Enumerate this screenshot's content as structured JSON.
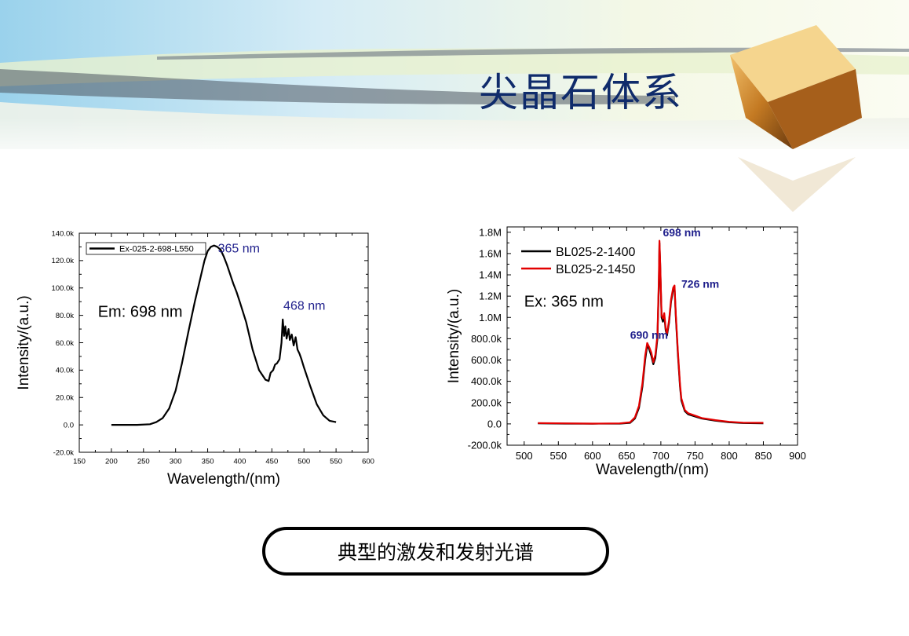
{
  "slide": {
    "title": "尖晶石体系",
    "caption": "典型的激发和发射光谱"
  },
  "chart_data": [
    {
      "type": "line",
      "xlabel": "Wavelength/(nm)",
      "ylabel": "Intensity/(a.u.)",
      "xlim": [
        150,
        600
      ],
      "ylim": [
        -20000,
        140000
      ],
      "xticks": [
        150,
        200,
        250,
        300,
        350,
        400,
        450,
        500,
        550,
        600
      ],
      "yticks": [
        -20000,
        0,
        20000,
        40000,
        60000,
        80000,
        100000,
        120000,
        140000
      ],
      "ytick_labels": [
        "-20.0k",
        "0.0",
        "20.0k",
        "40.0k",
        "60.0k",
        "80.0k",
        "100.0k",
        "120.0k",
        "140.0k"
      ],
      "legend_position": "top-left",
      "series": [
        {
          "name": "Ex-025-2-698-L550",
          "color": "#000000",
          "x": [
            200,
            220,
            240,
            260,
            270,
            280,
            290,
            300,
            310,
            320,
            330,
            340,
            345,
            350,
            355,
            360,
            365,
            370,
            375,
            380,
            385,
            390,
            395,
            400,
            410,
            420,
            430,
            440,
            445,
            448,
            452,
            455,
            458,
            462,
            465,
            467,
            469,
            471,
            473,
            476,
            478,
            481,
            484,
            487,
            490,
            493,
            496,
            500,
            510,
            520,
            530,
            540,
            550
          ],
          "y": [
            0,
            0,
            0,
            500,
            2000,
            5000,
            12000,
            25000,
            45000,
            68000,
            90000,
            110000,
            120000,
            127000,
            130000,
            131000,
            130000,
            128000,
            123000,
            117000,
            110000,
            103000,
            97000,
            90000,
            75000,
            55000,
            40000,
            33000,
            32000,
            38000,
            40000,
            44000,
            45000,
            48000,
            60000,
            77000,
            65000,
            72000,
            63000,
            70000,
            62000,
            66000,
            58000,
            64000,
            55000,
            52000,
            48000,
            42000,
            28000,
            15000,
            7000,
            3000,
            2000
          ]
        }
      ],
      "annotations": [
        {
          "text": "365 nm",
          "x": 366,
          "y": 126000,
          "color": "#1f1f8c"
        },
        {
          "text": "468 nm",
          "x": 468,
          "y": 84000,
          "color": "#1f1f8c"
        },
        {
          "text": "Em: 698 nm",
          "x": 179,
          "y": 79000,
          "color": "#000000"
        }
      ]
    },
    {
      "type": "line",
      "xlabel": "Wavelength/(nm)",
      "ylabel": "Intensity/(a.u.)",
      "xlim": [
        475,
        900
      ],
      "ylim": [
        -200000,
        1850000
      ],
      "xticks": [
        500,
        550,
        600,
        650,
        700,
        750,
        800,
        850,
        900
      ],
      "yticks": [
        -200000,
        0,
        200000,
        400000,
        600000,
        800000,
        1000000,
        1200000,
        1400000,
        1600000,
        1800000
      ],
      "ytick_labels": [
        "-200.0k",
        "0.0",
        "200.0k",
        "400.0k",
        "600.0k",
        "800.0k",
        "1.0M",
        "1.2M",
        "1.4M",
        "1.6M",
        "1.8M"
      ],
      "legend_position": "top-left",
      "series": [
        {
          "name": "BL025-2-1400",
          "color": "#000000",
          "x": [
            520,
            560,
            600,
            640,
            655,
            662,
            668,
            673,
            677,
            680,
            683,
            686,
            689,
            692,
            695,
            697,
            698,
            699,
            701,
            703,
            705,
            707,
            709,
            712,
            715,
            718,
            720,
            722,
            725,
            728,
            730,
            735,
            740,
            760,
            780,
            800,
            820,
            850
          ],
          "y": [
            5000,
            3000,
            2000,
            3000,
            10000,
            50000,
            150000,
            350000,
            600000,
            740000,
            700000,
            640000,
            560000,
            620000,
            800000,
            1300000,
            1700000,
            1500000,
            1000000,
            960000,
            1020000,
            880000,
            830000,
            950000,
            1150000,
            1260000,
            1280000,
            1000000,
            650000,
            350000,
            220000,
            120000,
            90000,
            50000,
            30000,
            15000,
            8000,
            5000
          ]
        },
        {
          "name": "BL025-2-1450",
          "color": "#e30000",
          "x": [
            520,
            560,
            600,
            640,
            655,
            662,
            668,
            673,
            677,
            680,
            683,
            686,
            689,
            692,
            695,
            697,
            698,
            699,
            701,
            703,
            705,
            707,
            709,
            712,
            715,
            718,
            720,
            722,
            725,
            728,
            730,
            735,
            740,
            760,
            780,
            800,
            820,
            850
          ],
          "y": [
            8000,
            5000,
            3000,
            5000,
            15000,
            60000,
            170000,
            380000,
            640000,
            760000,
            720000,
            670000,
            580000,
            650000,
            830000,
            1350000,
            1720000,
            1520000,
            1020000,
            990000,
            1040000,
            900000,
            850000,
            970000,
            1170000,
            1280000,
            1300000,
            1020000,
            680000,
            370000,
            240000,
            130000,
            100000,
            55000,
            35000,
            20000,
            12000,
            10000
          ]
        }
      ],
      "annotations": [
        {
          "text": "698 nm",
          "x": 703,
          "y": 1760000,
          "color": "#1f1f8c",
          "bold": true
        },
        {
          "text": "726 nm",
          "x": 730,
          "y": 1280000,
          "color": "#1f1f8c",
          "bold": true
        },
        {
          "text": "690 nm",
          "x": 655,
          "y": 800000,
          "color": "#1f1f8c",
          "bold": true
        },
        {
          "text": "Ex: 365 nm",
          "x": 500,
          "y": 1100000,
          "color": "#000000"
        }
      ]
    }
  ]
}
